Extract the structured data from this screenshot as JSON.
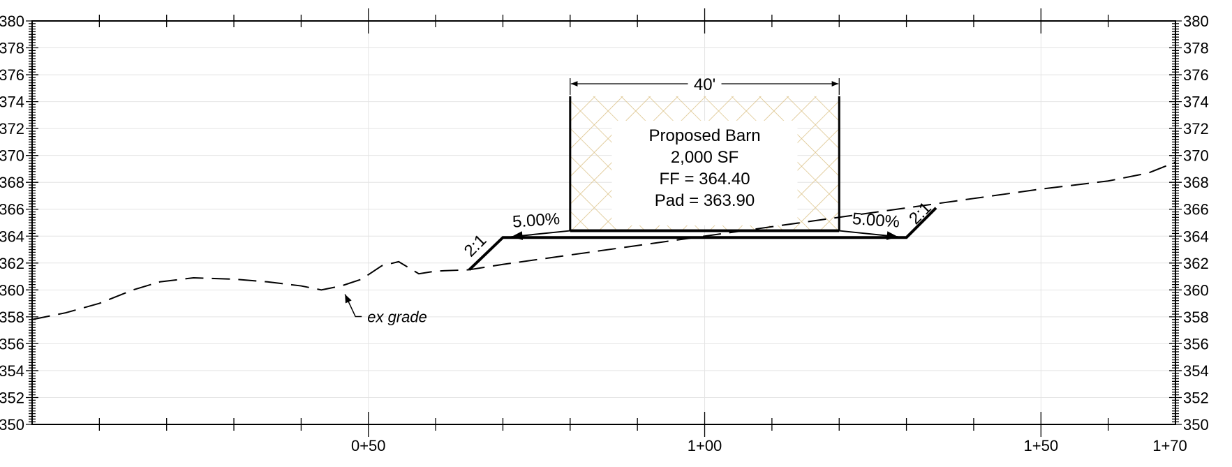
{
  "diagram": {
    "elevation_labels": [
      "350",
      "352",
      "354",
      "356",
      "358",
      "360",
      "362",
      "364",
      "366",
      "368",
      "370",
      "372",
      "374",
      "376",
      "378",
      "380"
    ],
    "station_labels": [
      {
        "station": 50,
        "label": "0+50"
      },
      {
        "station": 100,
        "label": "1+00"
      },
      {
        "station": 150,
        "label": "1+50"
      },
      {
        "station": 170,
        "label": "1+70"
      }
    ],
    "station_range": [
      0,
      170
    ],
    "elevation_range": [
      350,
      380
    ],
    "barn": {
      "dimension_label": "40'",
      "name": "Proposed Barn",
      "area": "2,000 SF",
      "ff": "FF = 364.40",
      "pad": "Pad = 363.90",
      "hatch_color": "#dcc38a"
    },
    "slope_labels": {
      "left_grade": "5.00%",
      "right_grade": "5.00%",
      "left_side": "2:1",
      "right_side": "2:1"
    },
    "existing_grade_label": "ex grade",
    "existing_grade_profile": [
      [
        0,
        357.8
      ],
      [
        5,
        358.3
      ],
      [
        10,
        359.0
      ],
      [
        15,
        360.0
      ],
      [
        19,
        360.6
      ],
      [
        24,
        360.9
      ],
      [
        30,
        360.8
      ],
      [
        35,
        360.6
      ],
      [
        40,
        360.3
      ],
      [
        43,
        360.0
      ],
      [
        46,
        360.3
      ],
      [
        49,
        360.8
      ],
      [
        52,
        361.8
      ],
      [
        54.5,
        362.1
      ],
      [
        57.5,
        361.2
      ],
      [
        60,
        361.4
      ],
      [
        65,
        361.5
      ],
      [
        70,
        361.9
      ],
      [
        80,
        362.6
      ],
      [
        90,
        363.3
      ],
      [
        100,
        364.0
      ],
      [
        110,
        364.7
      ],
      [
        120,
        365.4
      ],
      [
        130,
        366.1
      ],
      [
        140,
        366.8
      ],
      [
        150,
        367.5
      ],
      [
        160,
        368.1
      ],
      [
        166,
        368.7
      ],
      [
        170,
        369.5
      ]
    ],
    "proposed_section": {
      "pad_left_station": 70,
      "pad_right_station": 130,
      "pad_elevation": 363.9,
      "building_left_station": 80,
      "building_right_station": 120,
      "ff_elevation": 364.4,
      "left_toe": [
        65,
        361.5
      ],
      "right_catch": [
        134.4,
        366.1
      ],
      "roof_elevation": 374.4
    }
  }
}
